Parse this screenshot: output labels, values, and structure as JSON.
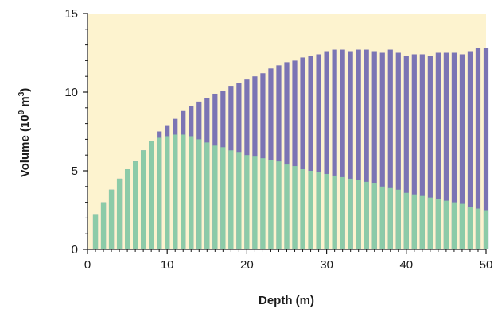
{
  "chart_data": {
    "type": "bar",
    "title": "",
    "xlabel": "Depth (m)",
    "ylabel_main": "Volume (10",
    "ylabel_sup": "9",
    "ylabel_tail": " m",
    "ylabel_sup2": "3",
    "ylabel_end": ")",
    "xlim": [
      0,
      50
    ],
    "ylim": [
      0,
      15
    ],
    "x_ticks": [
      0,
      10,
      20,
      30,
      40,
      50
    ],
    "y_ticks": [
      0,
      5,
      10,
      15
    ],
    "grid": false,
    "legend": "none",
    "colors": {
      "plot_background": "#fdf3cf",
      "total_bar": "#7b74b4",
      "lower_bar": "#8ccba8",
      "axis": "#1a1a1a"
    },
    "x": [
      1,
      2,
      3,
      4,
      5,
      6,
      7,
      8,
      9,
      10,
      11,
      12,
      13,
      14,
      15,
      16,
      17,
      18,
      19,
      20,
      21,
      22,
      23,
      24,
      25,
      26,
      27,
      28,
      29,
      30,
      31,
      32,
      33,
      34,
      35,
      36,
      37,
      38,
      39,
      40,
      41,
      42,
      43,
      44,
      45,
      46,
      47,
      48,
      49,
      50
    ],
    "series": [
      {
        "values": [
          2.2,
          3.0,
          3.8,
          4.5,
          5.1,
          5.6,
          6.3,
          6.9,
          7.5,
          7.9,
          8.3,
          8.8,
          9.1,
          9.4,
          9.6,
          9.9,
          10.1,
          10.4,
          10.6,
          10.8,
          11.0,
          11.2,
          11.5,
          11.7,
          11.9,
          12.0,
          12.2,
          12.3,
          12.4,
          12.6,
          12.7,
          12.7,
          12.6,
          12.7,
          12.7,
          12.6,
          12.5,
          12.7,
          12.5,
          12.3,
          12.4,
          12.4,
          12.3,
          12.5,
          12.5,
          12.5,
          12.4,
          12.6,
          12.8,
          12.8
        ]
      },
      {
        "values": [
          2.2,
          3.0,
          3.8,
          4.5,
          5.1,
          5.6,
          6.3,
          6.9,
          7.1,
          7.2,
          7.3,
          7.3,
          7.2,
          7.0,
          6.8,
          6.6,
          6.5,
          6.3,
          6.2,
          6.0,
          5.9,
          5.8,
          5.7,
          5.6,
          5.4,
          5.3,
          5.1,
          5.0,
          4.9,
          4.8,
          4.7,
          4.6,
          4.5,
          4.4,
          4.3,
          4.2,
          4.0,
          3.9,
          3.8,
          3.6,
          3.5,
          3.4,
          3.3,
          3.2,
          3.1,
          3.0,
          2.9,
          2.7,
          2.6,
          2.5
        ]
      }
    ]
  }
}
